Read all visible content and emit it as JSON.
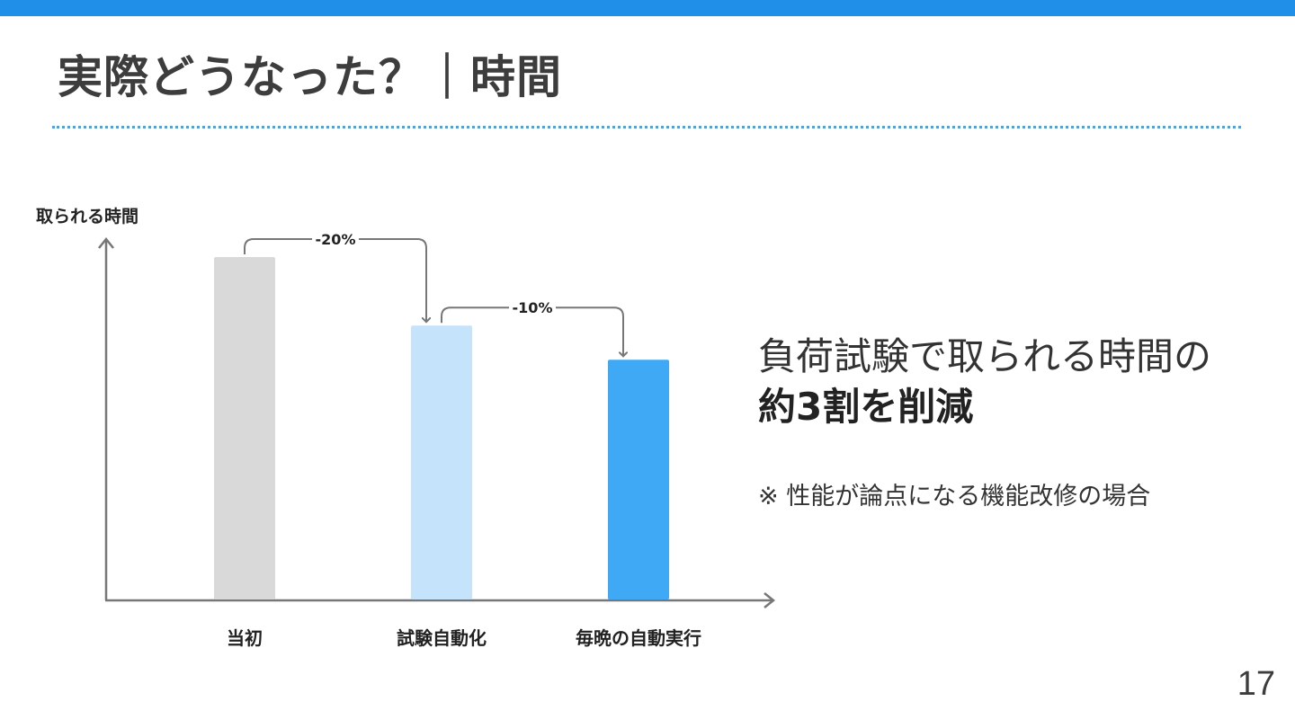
{
  "slide": {
    "title": "実際どうなった？｜時間",
    "page_number": "17",
    "accent_color": "#1f8fe8"
  },
  "summary": {
    "line1": "負荷試験で取られる時間の",
    "line2": "約3割を削減",
    "note": "※ 性能が論点になる機能改修の場合"
  },
  "chart_data": {
    "type": "bar",
    "ylabel": "取られる時間",
    "xlabel": "",
    "categories": [
      "当初",
      "試験自動化",
      "毎晩の自動実行"
    ],
    "values": [
      100,
      80,
      70
    ],
    "colors": [
      "#d9d9d9",
      "#c5e4fc",
      "#3fa9f5"
    ],
    "ylim": [
      0,
      100
    ],
    "annotations": [
      {
        "from": 0,
        "to": 1,
        "label": "-20%"
      },
      {
        "from": 1,
        "to": 2,
        "label": "-10%"
      }
    ],
    "grid": false,
    "legend": "none"
  }
}
